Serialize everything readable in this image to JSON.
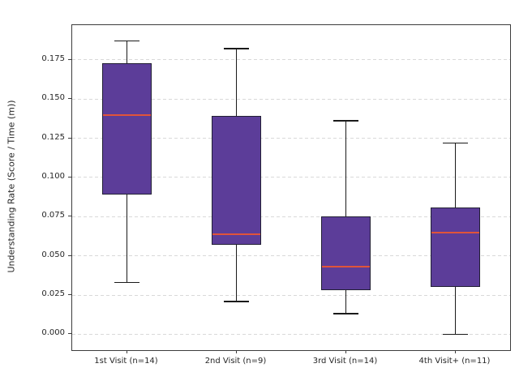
{
  "figure": {
    "background": "#ffffff",
    "colors": {
      "box_fill": "#5c3d99",
      "box_edge": "#222034",
      "median": "#e0543a",
      "whisker": "#1a1a1a",
      "grid": "#d9d9d9",
      "spine": "#3c3c3c",
      "text": "#262626"
    }
  },
  "chart_data": {
    "type": "box",
    "title": "",
    "xlabel": "",
    "ylabel": "Understanding Rate (Score / Time (m))",
    "categories": [
      "1st Visit (n=14)",
      "2nd Visit (n=9)",
      "3rd Visit (n=14)",
      "4th Visit+ (n=11)"
    ],
    "yticks": [
      0.0,
      0.025,
      0.05,
      0.075,
      0.1,
      0.125,
      0.15,
      0.175
    ],
    "ytick_labels": [
      "0.000",
      "0.025",
      "0.050",
      "0.075",
      "0.100",
      "0.125",
      "0.150",
      "0.175"
    ],
    "ylim": [
      -0.0101,
      0.1971
    ],
    "grid": "horizontal-dashed",
    "legend": "none",
    "series": [
      {
        "name": "1st Visit (n=14)",
        "n": 14,
        "whisker_low": 0.033,
        "q1": 0.089,
        "median": 0.14,
        "q3": 0.173,
        "whisker_high": 0.187,
        "outliers": []
      },
      {
        "name": "2nd Visit (n=9)",
        "n": 9,
        "whisker_low": 0.021,
        "q1": 0.057,
        "median": 0.064,
        "q3": 0.139,
        "whisker_high": 0.182,
        "outliers": []
      },
      {
        "name": "3rd Visit (n=14)",
        "n": 14,
        "whisker_low": 0.013,
        "q1": 0.028,
        "median": 0.043,
        "q3": 0.075,
        "whisker_high": 0.136,
        "outliers": []
      },
      {
        "name": "4th Visit+ (n=11)",
        "n": 11,
        "whisker_low": 0.0,
        "q1": 0.03,
        "median": 0.065,
        "q3": 0.081,
        "whisker_high": 0.122,
        "outliers": []
      }
    ]
  }
}
